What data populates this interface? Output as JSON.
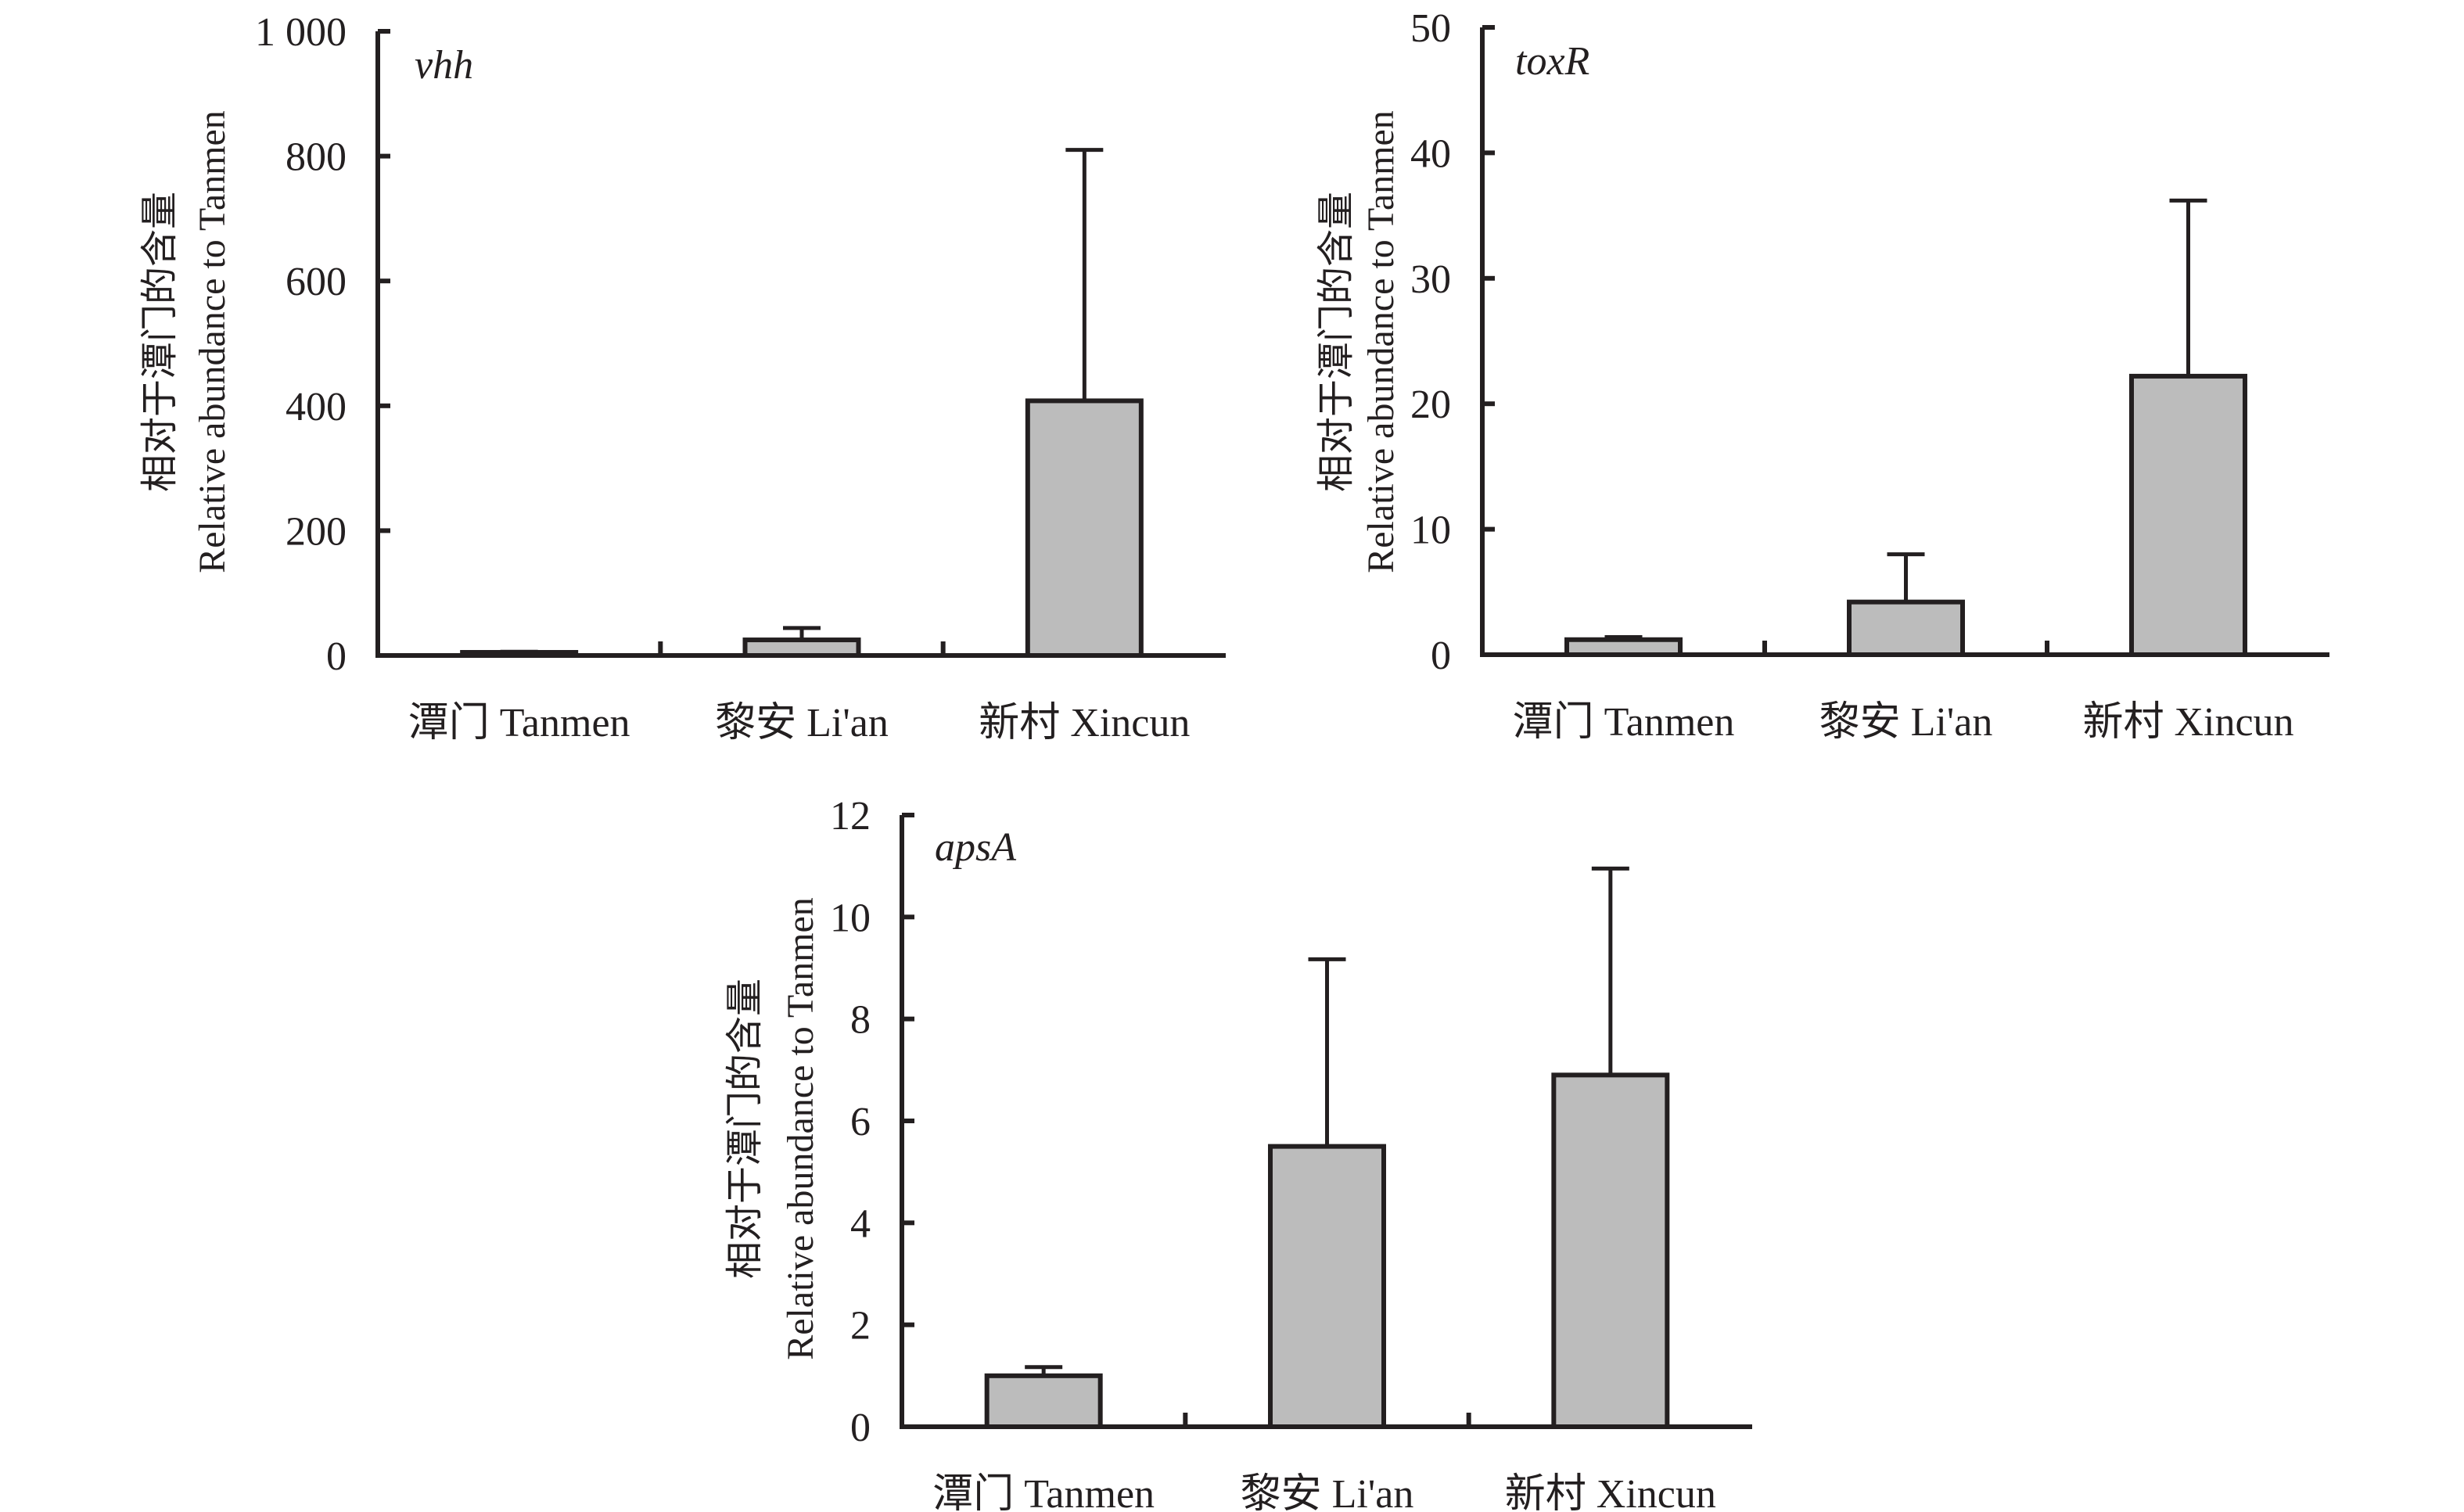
{
  "colors": {
    "bar_fill": "#bcbcbc",
    "line": "#231f20",
    "background": "#ffffff"
  },
  "chart_data": [
    {
      "type": "bar",
      "title": "vhh",
      "categories": [
        "潭门 Tanmen",
        "黎安 Li'an",
        "新村 Xincun"
      ],
      "values": [
        5,
        25,
        408
      ],
      "error_upper": [
        1,
        19,
        402
      ],
      "ylabel_cn": "相对于潭门的含量",
      "ylabel_en": "Relative abundance to Tanmen",
      "xlabel": "",
      "ylim": [
        0,
        1000
      ],
      "yticks": [
        0,
        200,
        400,
        600,
        800,
        1000
      ],
      "ytick_labels": [
        "0",
        "200",
        "400",
        "600",
        "800",
        "1 000"
      ],
      "grid": false,
      "legend": "none"
    },
    {
      "type": "bar",
      "title": "toxR",
      "categories": [
        "潭门 Tanmen",
        "黎安 Li'an",
        "新村 Xincun"
      ],
      "values": [
        1.2,
        4.2,
        22.2
      ],
      "error_upper": [
        0.2,
        3.8,
        14.0
      ],
      "ylabel_cn": "相对于潭门的含量",
      "ylabel_en": "Relative abundance to Tanmen",
      "xlabel": "",
      "ylim": [
        0,
        50
      ],
      "yticks": [
        0,
        10,
        20,
        30,
        40,
        50
      ],
      "ytick_labels": [
        "0",
        "10",
        "20",
        "30",
        "40",
        "50"
      ],
      "grid": false,
      "legend": "none"
    },
    {
      "type": "bar",
      "title": "apsA",
      "categories": [
        "潭门 Tanmen",
        "黎安 Li'an",
        "新村 Xincun"
      ],
      "values": [
        1.0,
        5.5,
        6.9
      ],
      "error_upper": [
        0.17,
        3.67,
        4.05
      ],
      "ylabel_cn": "相对于潭门的含量",
      "ylabel_en": "Relative abundance to Tanmen",
      "xlabel": "",
      "ylim": [
        0,
        12
      ],
      "yticks": [
        0,
        2,
        4,
        6,
        8,
        10,
        12
      ],
      "ytick_labels": [
        "0",
        "2",
        "4",
        "6",
        "8",
        "10",
        "12"
      ],
      "grid": false,
      "legend": "none"
    }
  ]
}
